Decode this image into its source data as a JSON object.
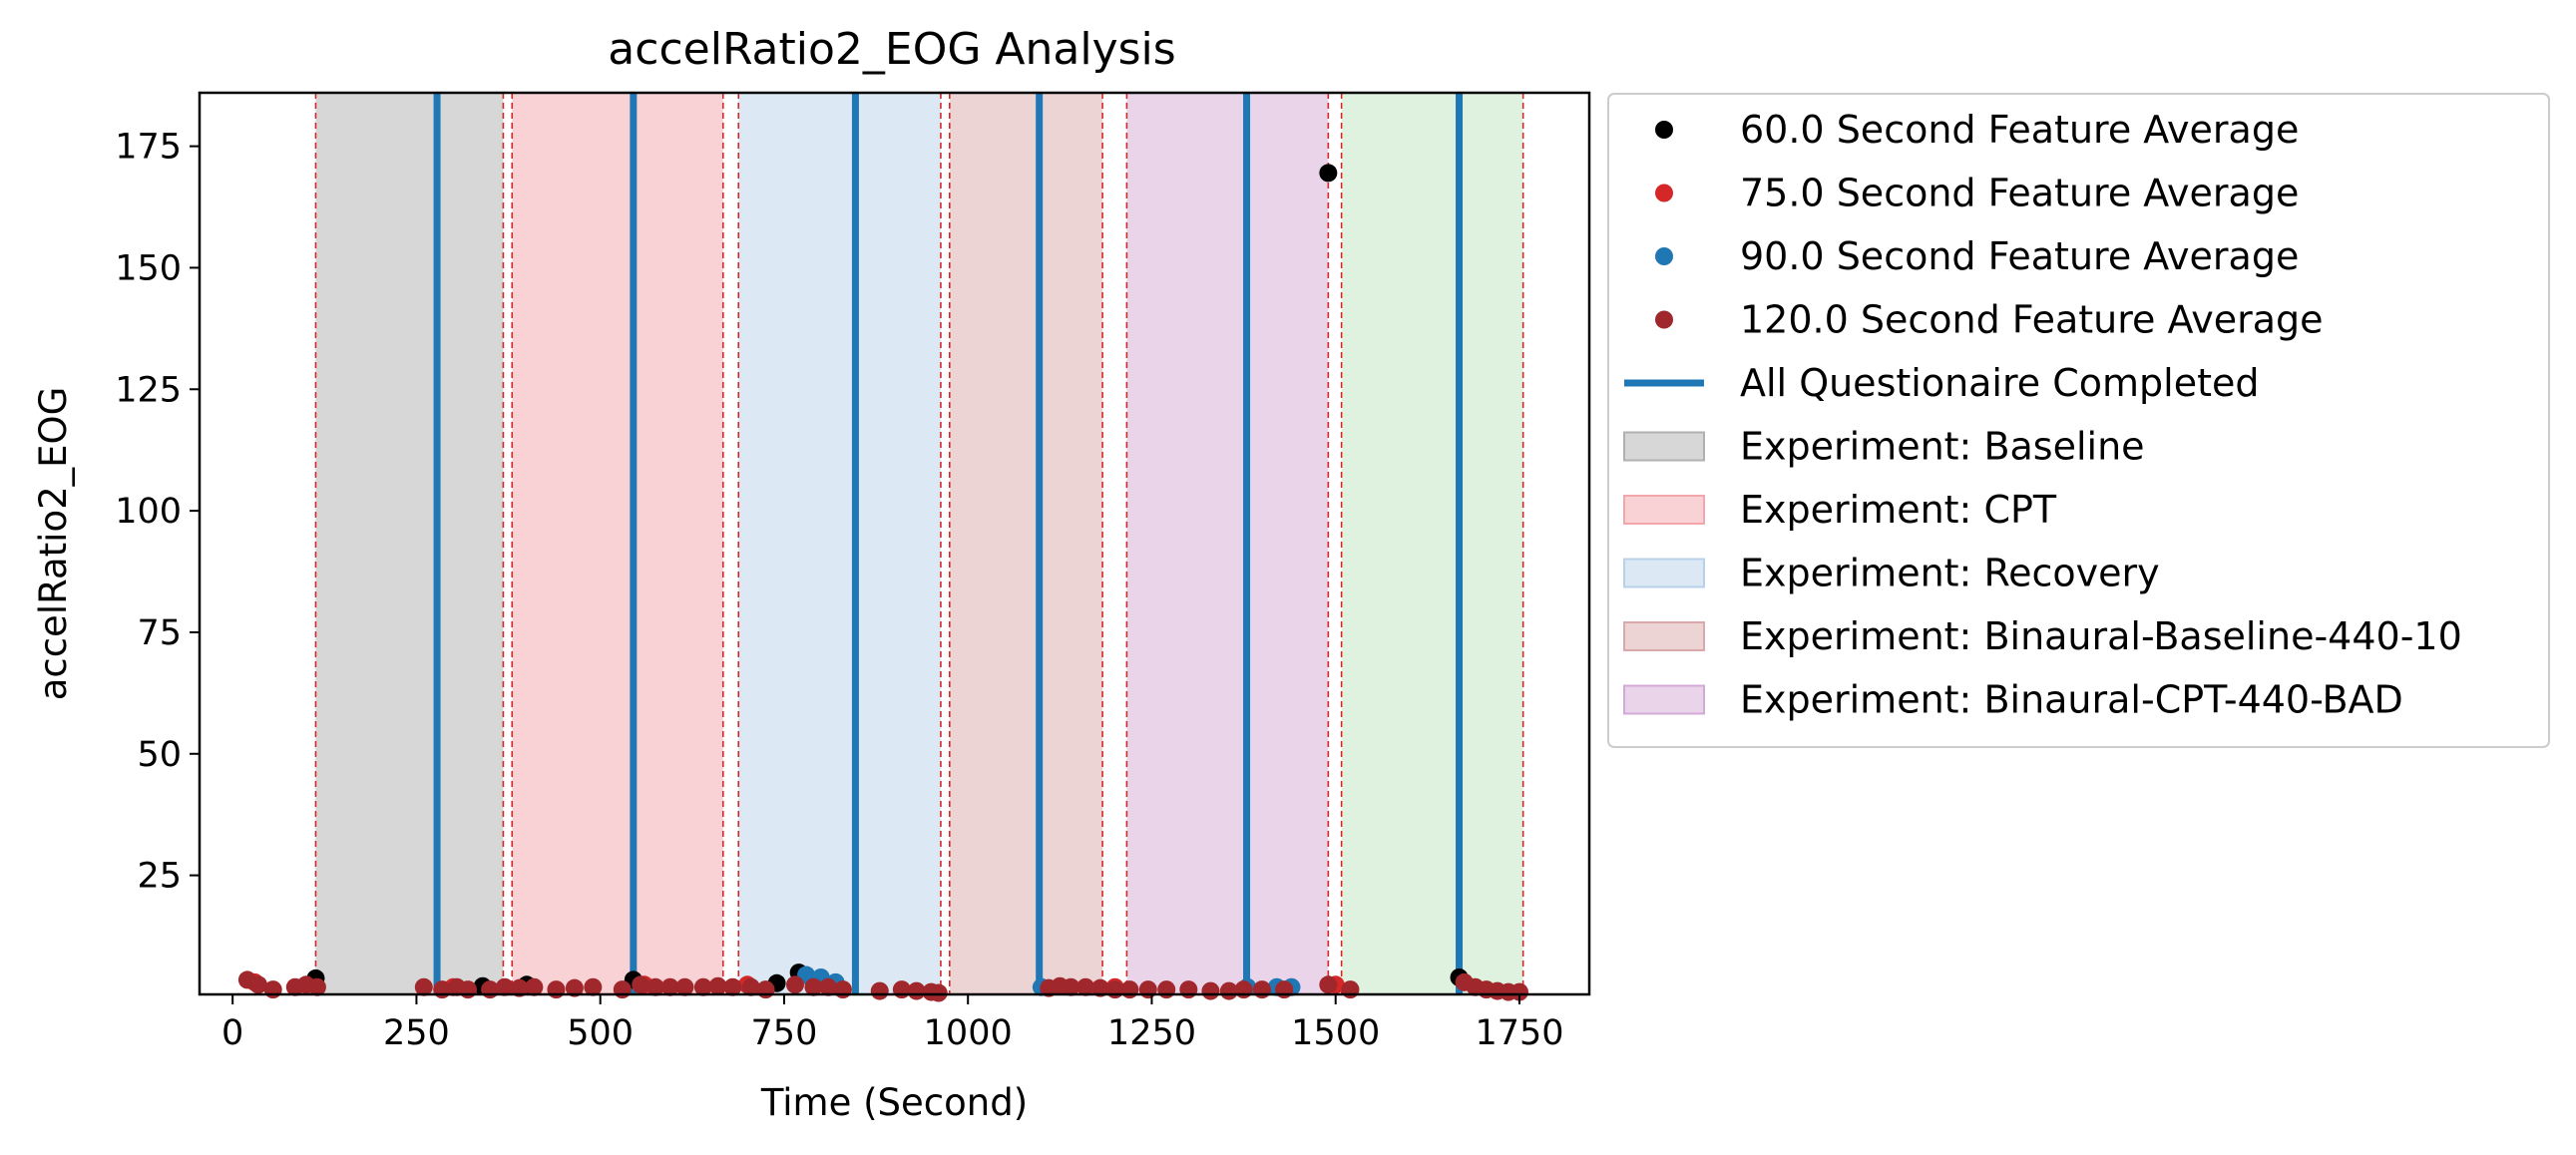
{
  "chart_data": {
    "type": "scatter",
    "title": "accelRatio2_EOG Analysis",
    "xlabel": "Time (Second)",
    "ylabel": "accelRatio2_EOG",
    "xlim": [
      -45,
      1845
    ],
    "ylim": [
      0.5,
      186
    ],
    "xticks": [
      0,
      250,
      500,
      750,
      1000,
      1250,
      1500,
      1750
    ],
    "yticks": [
      25,
      50,
      75,
      100,
      125,
      150,
      175
    ],
    "grid": false,
    "legend_position": "outside-right",
    "experiments": [
      {
        "name": "Experiment: Baseline",
        "start": 113,
        "end": 368,
        "color": "#b0b0b0"
      },
      {
        "name": "Experiment: CPT",
        "start": 380,
        "end": 667,
        "color": "#f4a6ad"
      },
      {
        "name": "Experiment: Recovery",
        "start": 688,
        "end": 963,
        "color": "#b9d1ea"
      },
      {
        "name": "Experiment: Binaural-Baseline-440-10",
        "start": 975,
        "end": 1183,
        "color": "#dba9aa"
      },
      {
        "name": "Experiment: Binaural-CPT-440-BAD",
        "start": 1216,
        "end": 1490,
        "color": "#d3aad6"
      },
      {
        "name": "",
        "start": 1508,
        "end": 1755,
        "color": "#bfe3bf"
      }
    ],
    "questionnaire_lines": {
      "name": "All Questionaire Completed",
      "color": "#1f77b4",
      "x": [
        278,
        545,
        847,
        1097,
        1379,
        1668
      ]
    },
    "series": [
      {
        "name": "60.0 Second Feature Average",
        "color": "#000000",
        "points": [
          [
            113,
            3.8
          ],
          [
            340,
            2.2
          ],
          [
            400,
            2.5
          ],
          [
            545,
            3.5
          ],
          [
            740,
            2.8
          ],
          [
            770,
            5.0
          ],
          [
            1490,
            169.5
          ],
          [
            1668,
            4.0
          ]
        ]
      },
      {
        "name": "75.0 Second Feature Average",
        "color": "#d62728",
        "points": [
          [
            30,
            3.0
          ],
          [
            300,
            2.0
          ],
          [
            560,
            2.5
          ],
          [
            700,
            2.5
          ],
          [
            790,
            3.0
          ],
          [
            1200,
            2.0
          ],
          [
            1500,
            2.5
          ]
        ]
      },
      {
        "name": "90.0 Second Feature Average",
        "color": "#1f77b4",
        "points": [
          [
            780,
            4.5
          ],
          [
            800,
            4.0
          ],
          [
            820,
            3.0
          ],
          [
            1100,
            2.0
          ],
          [
            1380,
            2.0
          ],
          [
            1420,
            2.0
          ],
          [
            1440,
            2.0
          ]
        ]
      },
      {
        "name": "120.0 Second Feature Average",
        "color": "#a0282c",
        "points": [
          [
            20,
            3.5
          ],
          [
            35,
            2.5
          ],
          [
            55,
            1.5
          ],
          [
            85,
            2.0
          ],
          [
            100,
            2.5
          ],
          [
            115,
            2.0
          ],
          [
            260,
            2.0
          ],
          [
            285,
            1.5
          ],
          [
            305,
            2.0
          ],
          [
            320,
            1.5
          ],
          [
            350,
            1.5
          ],
          [
            370,
            2.0
          ],
          [
            390,
            1.8
          ],
          [
            410,
            2.0
          ],
          [
            440,
            1.5
          ],
          [
            465,
            1.8
          ],
          [
            490,
            2.0
          ],
          [
            530,
            1.5
          ],
          [
            555,
            2.5
          ],
          [
            575,
            2.0
          ],
          [
            595,
            2.0
          ],
          [
            615,
            2.0
          ],
          [
            640,
            2.0
          ],
          [
            660,
            2.2
          ],
          [
            680,
            2.0
          ],
          [
            705,
            2.0
          ],
          [
            725,
            1.5
          ],
          [
            765,
            2.5
          ],
          [
            790,
            2.0
          ],
          [
            810,
            2.0
          ],
          [
            830,
            1.5
          ],
          [
            880,
            1.2
          ],
          [
            910,
            1.5
          ],
          [
            930,
            1.2
          ],
          [
            950,
            1.0
          ],
          [
            960,
            0.8
          ],
          [
            1110,
            1.8
          ],
          [
            1125,
            2.2
          ],
          [
            1140,
            2.0
          ],
          [
            1160,
            2.0
          ],
          [
            1180,
            1.8
          ],
          [
            1200,
            1.5
          ],
          [
            1220,
            1.5
          ],
          [
            1245,
            1.5
          ],
          [
            1270,
            1.5
          ],
          [
            1300,
            1.5
          ],
          [
            1330,
            1.2
          ],
          [
            1355,
            1.2
          ],
          [
            1375,
            1.5
          ],
          [
            1400,
            1.5
          ],
          [
            1430,
            1.5
          ],
          [
            1490,
            2.5
          ],
          [
            1520,
            1.5
          ],
          [
            1675,
            3.0
          ],
          [
            1690,
            2.0
          ],
          [
            1705,
            1.5
          ],
          [
            1720,
            1.2
          ],
          [
            1735,
            1.0
          ],
          [
            1750,
            1.0
          ]
        ]
      }
    ]
  }
}
